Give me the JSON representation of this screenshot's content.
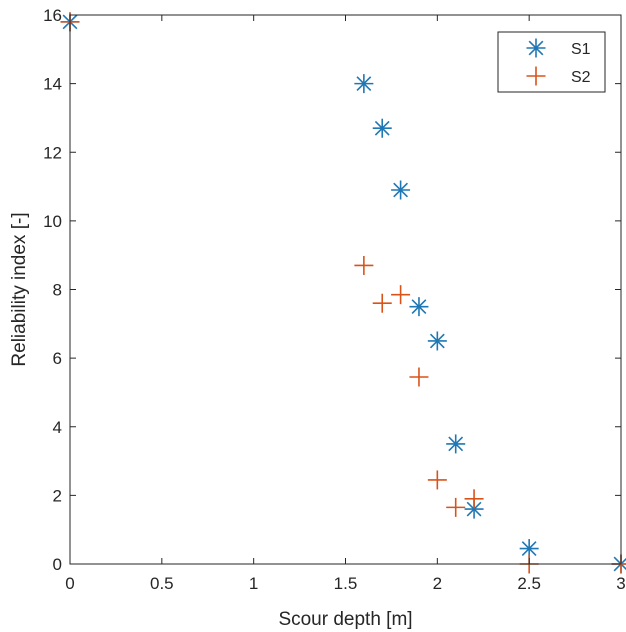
{
  "chart_data": {
    "type": "scatter",
    "xlabel": "Scour depth [m]",
    "ylabel": "Reliability index [-]",
    "xlim": [
      0,
      3
    ],
    "ylim": [
      0,
      16
    ],
    "xticks": [
      0,
      0.5,
      1,
      1.5,
      2,
      2.5,
      3
    ],
    "xtick_labels": [
      "0",
      "0.5",
      "1",
      "1.5",
      "2",
      "2.5",
      "3"
    ],
    "yticks": [
      0,
      2,
      4,
      6,
      8,
      10,
      12,
      14,
      16
    ],
    "ytick_labels": [
      "0",
      "2",
      "4",
      "6",
      "8",
      "10",
      "12",
      "14",
      "16"
    ],
    "grid": false,
    "legend_position": "top-right",
    "series": [
      {
        "name": "S1",
        "marker": "asterisk",
        "color": "#1f77b4",
        "points": [
          {
            "x": 0,
            "y": 15.8
          },
          {
            "x": 1.6,
            "y": 14.0
          },
          {
            "x": 1.7,
            "y": 12.7
          },
          {
            "x": 1.8,
            "y": 10.9
          },
          {
            "x": 1.9,
            "y": 7.5
          },
          {
            "x": 2.0,
            "y": 6.5
          },
          {
            "x": 2.1,
            "y": 3.5
          },
          {
            "x": 2.2,
            "y": 1.6
          },
          {
            "x": 2.5,
            "y": 0.45
          },
          {
            "x": 3.0,
            "y": 0
          }
        ]
      },
      {
        "name": "S2",
        "marker": "plus",
        "color": "#d95319",
        "points": [
          {
            "x": 0,
            "y": 15.8
          },
          {
            "x": 1.6,
            "y": 8.7
          },
          {
            "x": 1.7,
            "y": 7.6
          },
          {
            "x": 1.8,
            "y": 7.85
          },
          {
            "x": 1.9,
            "y": 5.45
          },
          {
            "x": 2.0,
            "y": 2.45
          },
          {
            "x": 2.1,
            "y": 1.65
          },
          {
            "x": 2.2,
            "y": 1.9
          },
          {
            "x": 2.5,
            "y": 0
          },
          {
            "x": 3.0,
            "y": 0
          }
        ]
      }
    ]
  }
}
